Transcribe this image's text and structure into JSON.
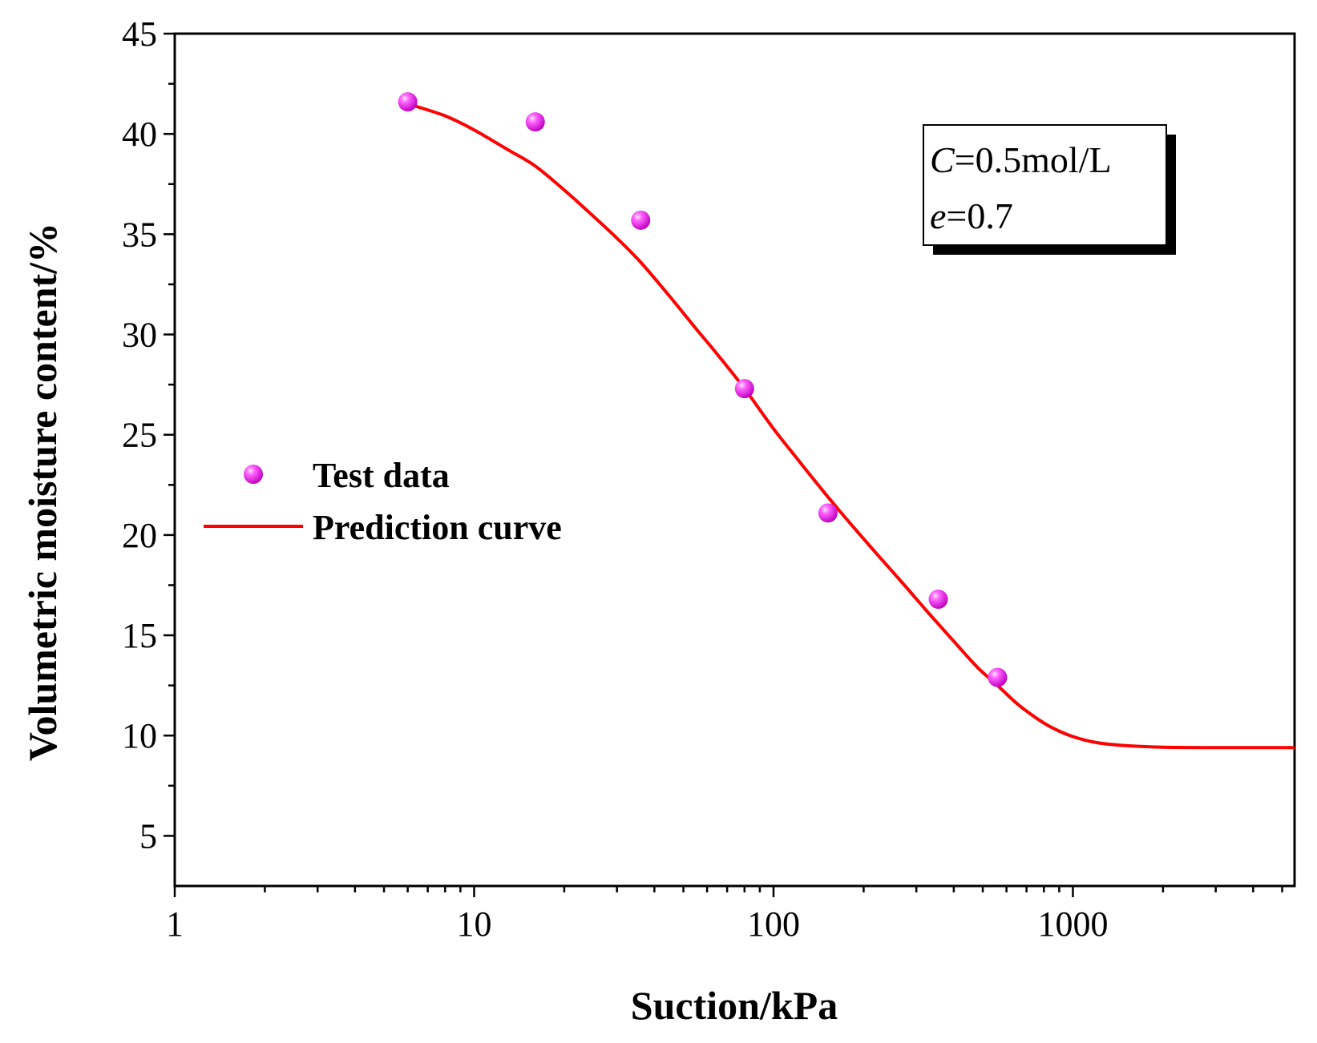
{
  "chart_data": {
    "type": "scatter",
    "title": "",
    "xlabel": "Suction/kPa",
    "ylabel": "Volumetric moisture content/%",
    "xscale": "log",
    "xlim": [
      1,
      5500
    ],
    "ylim": [
      2.5,
      45
    ],
    "xticks": [
      1,
      10,
      100,
      1000
    ],
    "xtick_labels": [
      "1",
      "10",
      "100",
      "1000"
    ],
    "yticks": [
      5,
      10,
      15,
      20,
      25,
      30,
      35,
      40,
      45
    ],
    "ytick_labels": [
      "5",
      "10",
      "15",
      "20",
      "25",
      "30",
      "35",
      "40",
      "45"
    ],
    "grid": false,
    "legend_position": "center-left",
    "series": [
      {
        "name": "Test data",
        "type": "scatter",
        "color": "#ff00ff",
        "x": [
          6,
          16,
          36,
          80,
          152,
          355,
          560
        ],
        "y": [
          41.6,
          40.6,
          35.7,
          27.3,
          21.1,
          16.8,
          12.9
        ]
      },
      {
        "name": "Prediction curve",
        "type": "line",
        "color": "#ff0000",
        "x": [
          6,
          8,
          10,
          13,
          16,
          20,
          25,
          30,
          36,
          45,
          55,
          65,
          80,
          100,
          120,
          150,
          180,
          220,
          270,
          330,
          400,
          480,
          560,
          650,
          750,
          850,
          1000,
          1200,
          1500,
          2000,
          3000,
          5500
        ],
        "y": [
          41.5,
          40.9,
          40.2,
          39.2,
          38.4,
          37.2,
          35.9,
          34.8,
          33.6,
          31.9,
          30.3,
          29.0,
          27.3,
          25.3,
          23.8,
          22.0,
          20.6,
          19.1,
          17.6,
          16.1,
          14.7,
          13.4,
          12.5,
          11.6,
          10.9,
          10.4,
          9.95,
          9.65,
          9.5,
          9.42,
          9.4,
          9.4
        ]
      }
    ],
    "annotation": {
      "line1_var": "C",
      "line1_rest": "=0.5mol/L",
      "line2_var": "e",
      "line2_rest": "=0.7"
    }
  }
}
